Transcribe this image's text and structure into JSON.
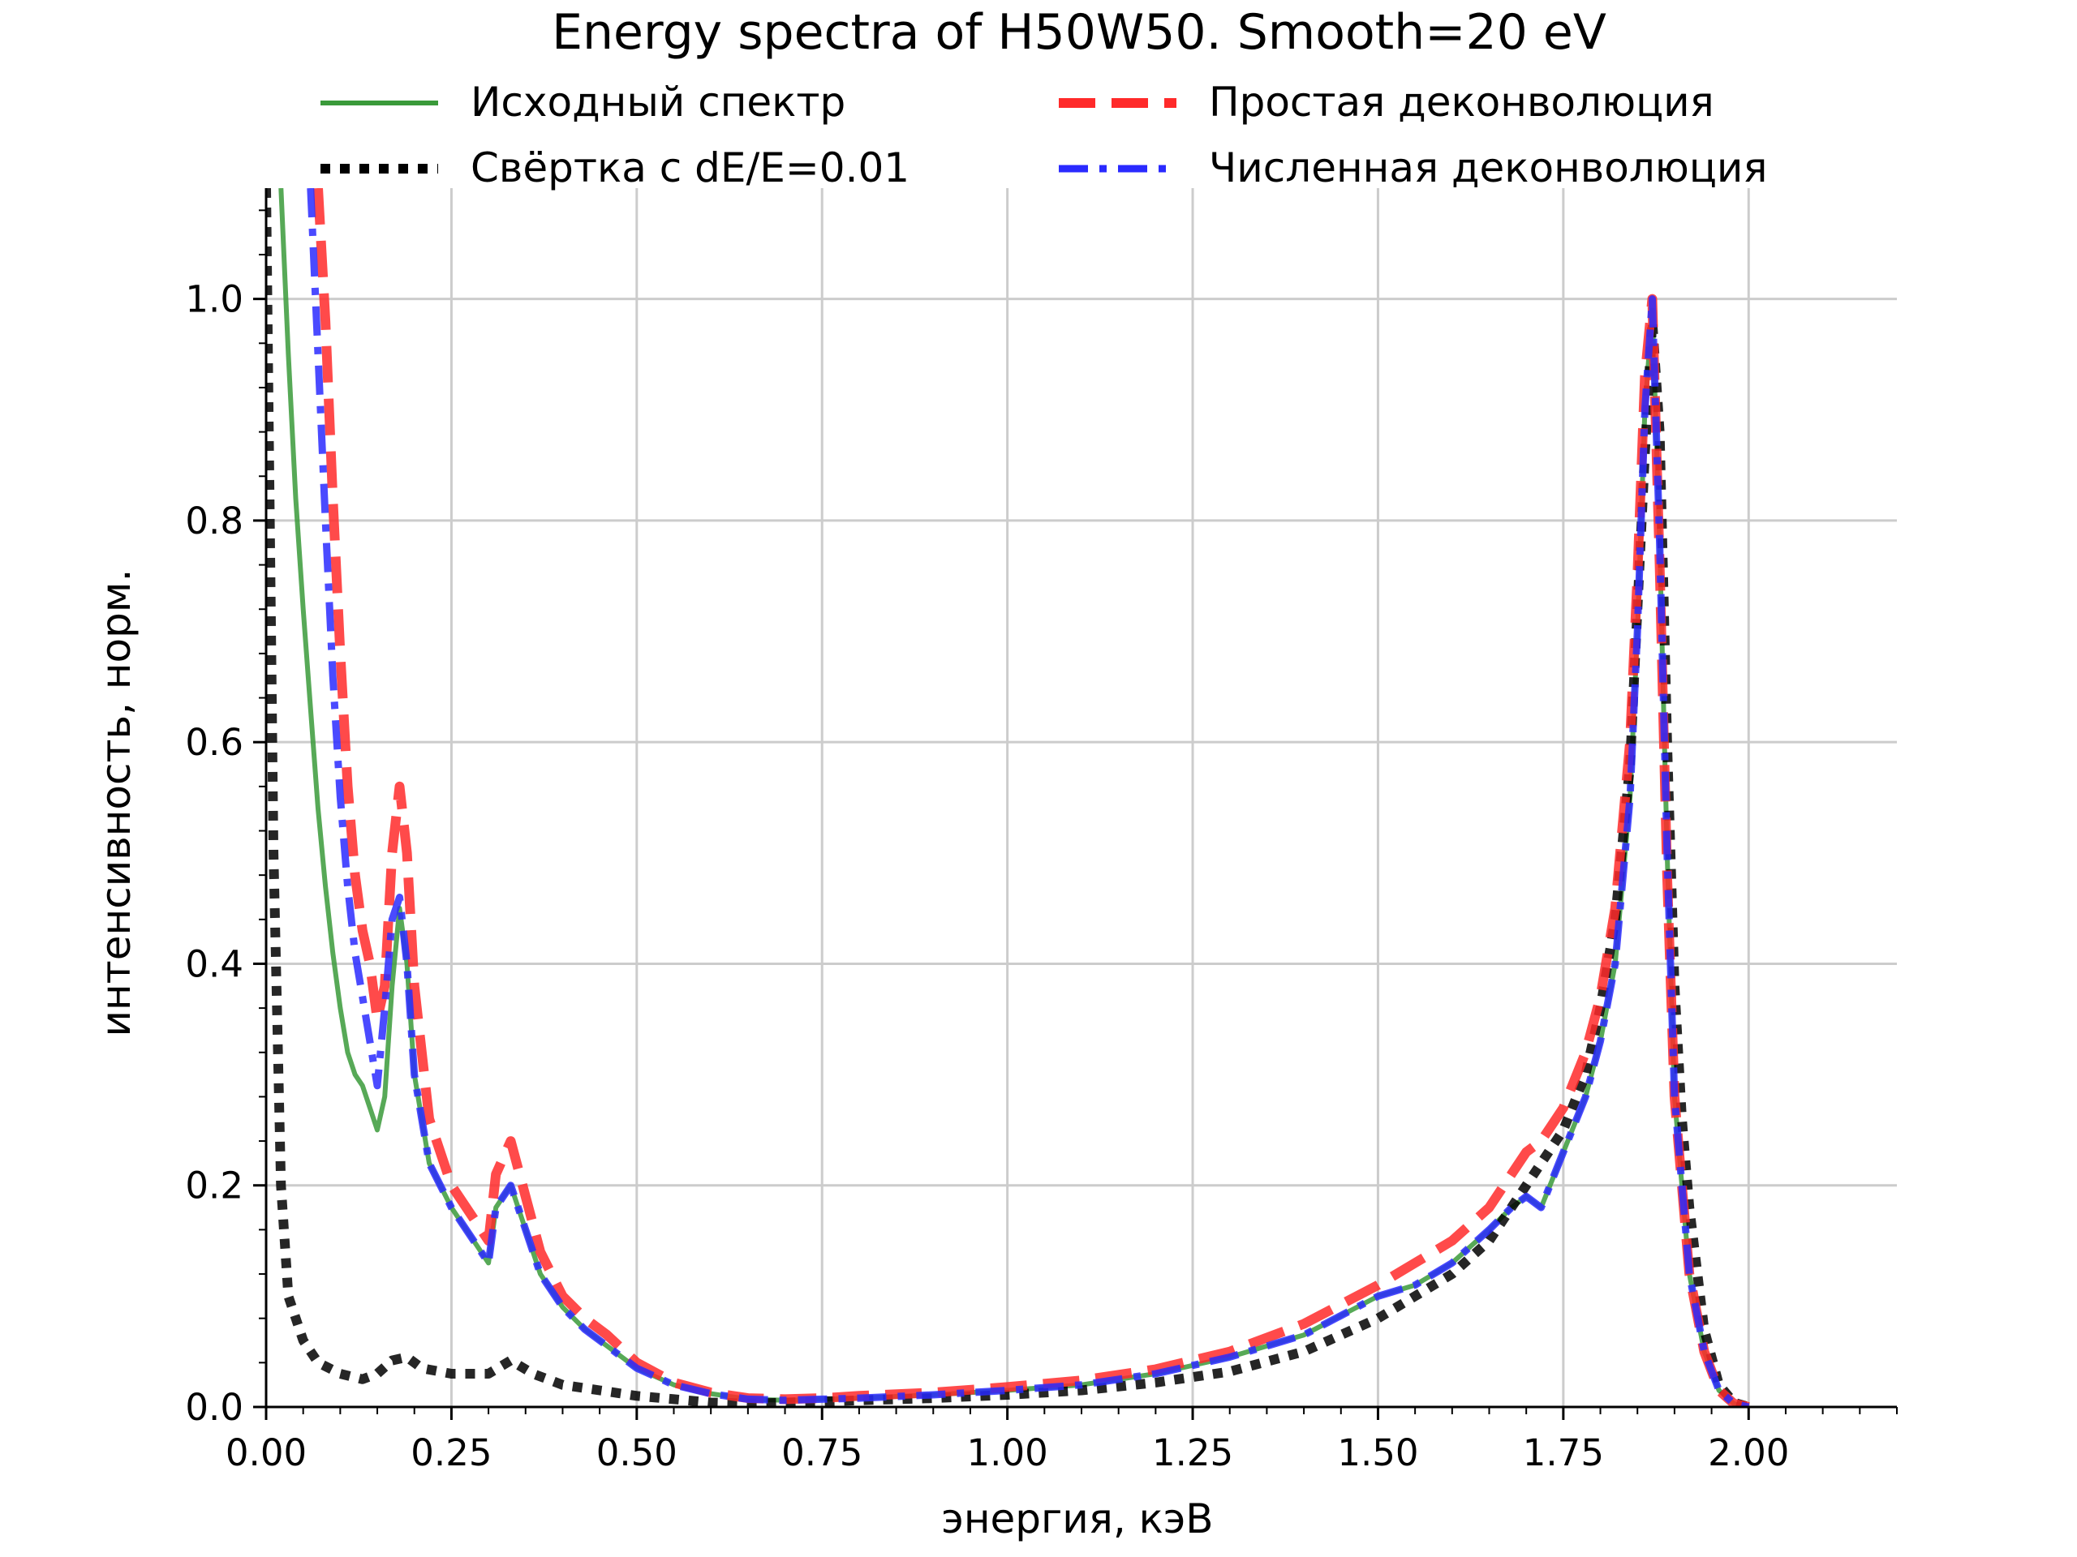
{
  "chart_data": {
    "type": "line",
    "title": "Energy spectra of H50W50. Smooth=20 eV",
    "xlabel": "энергия, кэВ",
    "ylabel": "интенсивность, норм.",
    "xlim": [
      0.0,
      2.2
    ],
    "ylim": [
      0.0,
      1.1
    ],
    "xticks": [
      "0.00",
      "0.25",
      "0.50",
      "0.75",
      "1.00",
      "1.25",
      "1.50",
      "1.75",
      "2.00"
    ],
    "yticks": [
      "0.0",
      "0.2",
      "0.4",
      "0.6",
      "0.8",
      "1.0"
    ],
    "grid": true,
    "legend_position": "top",
    "series": [
      {
        "name": "Исходный спектр",
        "color": "#3a9a3a",
        "style": "solid",
        "x": [
          0.02,
          0.03,
          0.04,
          0.05,
          0.06,
          0.07,
          0.08,
          0.09,
          0.1,
          0.11,
          0.12,
          0.13,
          0.14,
          0.15,
          0.16,
          0.17,
          0.18,
          0.19,
          0.2,
          0.22,
          0.25,
          0.28,
          0.3,
          0.31,
          0.33,
          0.35,
          0.37,
          0.4,
          0.43,
          0.46,
          0.5,
          0.55,
          0.6,
          0.65,
          0.7,
          0.75,
          0.8,
          0.9,
          1.0,
          1.1,
          1.2,
          1.3,
          1.4,
          1.5,
          1.55,
          1.6,
          1.65,
          1.68,
          1.7,
          1.72,
          1.75,
          1.78,
          1.8,
          1.82,
          1.84,
          1.85,
          1.86,
          1.87,
          1.88,
          1.89,
          1.9,
          1.91,
          1.92,
          1.94,
          1.96,
          1.98,
          2.0
        ],
        "y": [
          1.1,
          0.95,
          0.82,
          0.72,
          0.63,
          0.54,
          0.47,
          0.41,
          0.36,
          0.32,
          0.3,
          0.29,
          0.27,
          0.25,
          0.28,
          0.38,
          0.45,
          0.4,
          0.3,
          0.22,
          0.18,
          0.15,
          0.13,
          0.18,
          0.2,
          0.16,
          0.12,
          0.09,
          0.07,
          0.055,
          0.035,
          0.02,
          0.012,
          0.007,
          0.006,
          0.007,
          0.008,
          0.011,
          0.015,
          0.02,
          0.03,
          0.045,
          0.065,
          0.1,
          0.11,
          0.13,
          0.16,
          0.18,
          0.19,
          0.18,
          0.23,
          0.28,
          0.33,
          0.4,
          0.55,
          0.7,
          0.9,
          0.99,
          0.78,
          0.5,
          0.28,
          0.2,
          0.12,
          0.05,
          0.015,
          0.003,
          0.0
        ]
      },
      {
        "name": "Свёртка с dE/E=0.01",
        "color": "#000000",
        "style": "dotted",
        "x": [
          0.0,
          0.01,
          0.02,
          0.03,
          0.05,
          0.07,
          0.1,
          0.13,
          0.15,
          0.17,
          0.19,
          0.21,
          0.25,
          0.3,
          0.33,
          0.36,
          0.4,
          0.45,
          0.5,
          0.55,
          0.6,
          0.65,
          0.7,
          0.8,
          0.9,
          1.0,
          1.1,
          1.2,
          1.3,
          1.4,
          1.5,
          1.55,
          1.6,
          1.65,
          1.7,
          1.75,
          1.78,
          1.8,
          1.82,
          1.84,
          1.85,
          1.86,
          1.87,
          1.88,
          1.89,
          1.9,
          1.91,
          1.92,
          1.94,
          1.96,
          1.98,
          2.0
        ],
        "y": [
          1.1,
          0.5,
          0.2,
          0.1,
          0.06,
          0.04,
          0.03,
          0.025,
          0.03,
          0.042,
          0.045,
          0.035,
          0.03,
          0.03,
          0.042,
          0.03,
          0.02,
          0.015,
          0.01,
          0.007,
          0.004,
          0.003,
          0.004,
          0.006,
          0.008,
          0.011,
          0.015,
          0.022,
          0.032,
          0.05,
          0.08,
          0.1,
          0.12,
          0.15,
          0.2,
          0.25,
          0.3,
          0.36,
          0.44,
          0.58,
          0.72,
          0.86,
          0.98,
          0.88,
          0.6,
          0.38,
          0.26,
          0.18,
          0.07,
          0.02,
          0.004,
          0.0
        ]
      },
      {
        "name": "Простая деконволюция",
        "color": "#ff2a2a",
        "style": "dashed",
        "x": [
          0.07,
          0.08,
          0.09,
          0.1,
          0.11,
          0.12,
          0.13,
          0.14,
          0.15,
          0.16,
          0.17,
          0.18,
          0.19,
          0.2,
          0.22,
          0.25,
          0.28,
          0.3,
          0.31,
          0.33,
          0.35,
          0.37,
          0.4,
          0.43,
          0.46,
          0.5,
          0.55,
          0.6,
          0.65,
          0.7,
          0.75,
          0.8,
          0.9,
          1.0,
          1.1,
          1.2,
          1.3,
          1.4,
          1.5,
          1.55,
          1.6,
          1.65,
          1.68,
          1.7,
          1.72,
          1.75,
          1.78,
          1.8,
          1.82,
          1.84,
          1.85,
          1.86,
          1.87,
          1.88,
          1.89,
          1.9,
          1.91,
          1.92,
          1.94,
          1.96,
          1.98,
          2.0
        ],
        "y": [
          1.1,
          0.98,
          0.82,
          0.68,
          0.56,
          0.48,
          0.43,
          0.4,
          0.35,
          0.38,
          0.5,
          0.56,
          0.5,
          0.38,
          0.26,
          0.2,
          0.17,
          0.15,
          0.21,
          0.24,
          0.19,
          0.14,
          0.1,
          0.08,
          0.065,
          0.04,
          0.022,
          0.013,
          0.008,
          0.007,
          0.008,
          0.01,
          0.013,
          0.018,
          0.024,
          0.034,
          0.05,
          0.075,
          0.11,
          0.13,
          0.15,
          0.18,
          0.21,
          0.23,
          0.24,
          0.27,
          0.32,
          0.37,
          0.45,
          0.6,
          0.75,
          0.93,
          1.0,
          0.76,
          0.48,
          0.28,
          0.2,
          0.12,
          0.05,
          0.015,
          0.003,
          0.0
        ]
      },
      {
        "name": "Численная деконволюция",
        "color": "#2a2aff",
        "style": "dashdot",
        "x": [
          0.06,
          0.07,
          0.08,
          0.09,
          0.1,
          0.11,
          0.12,
          0.13,
          0.14,
          0.15,
          0.16,
          0.17,
          0.18,
          0.19,
          0.2,
          0.22,
          0.25,
          0.28,
          0.3,
          0.31,
          0.33,
          0.35,
          0.37,
          0.4,
          0.43,
          0.46,
          0.5,
          0.55,
          0.6,
          0.65,
          0.7,
          0.75,
          0.8,
          0.9,
          1.0,
          1.1,
          1.2,
          1.3,
          1.4,
          1.5,
          1.55,
          1.6,
          1.65,
          1.68,
          1.7,
          1.72,
          1.75,
          1.78,
          1.8,
          1.82,
          1.84,
          1.85,
          1.86,
          1.87,
          1.88,
          1.89,
          1.9,
          1.91,
          1.92,
          1.94,
          1.96,
          1.98,
          2.0
        ],
        "y": [
          1.1,
          0.95,
          0.8,
          0.66,
          0.55,
          0.47,
          0.41,
          0.37,
          0.33,
          0.29,
          0.36,
          0.44,
          0.46,
          0.4,
          0.3,
          0.22,
          0.18,
          0.15,
          0.13,
          0.18,
          0.2,
          0.16,
          0.12,
          0.09,
          0.07,
          0.055,
          0.035,
          0.02,
          0.012,
          0.007,
          0.006,
          0.007,
          0.008,
          0.011,
          0.015,
          0.02,
          0.03,
          0.045,
          0.065,
          0.1,
          0.11,
          0.13,
          0.16,
          0.18,
          0.19,
          0.18,
          0.23,
          0.28,
          0.33,
          0.4,
          0.55,
          0.7,
          0.9,
          1.0,
          0.78,
          0.5,
          0.28,
          0.2,
          0.12,
          0.05,
          0.015,
          0.003,
          0.0
        ]
      }
    ]
  }
}
